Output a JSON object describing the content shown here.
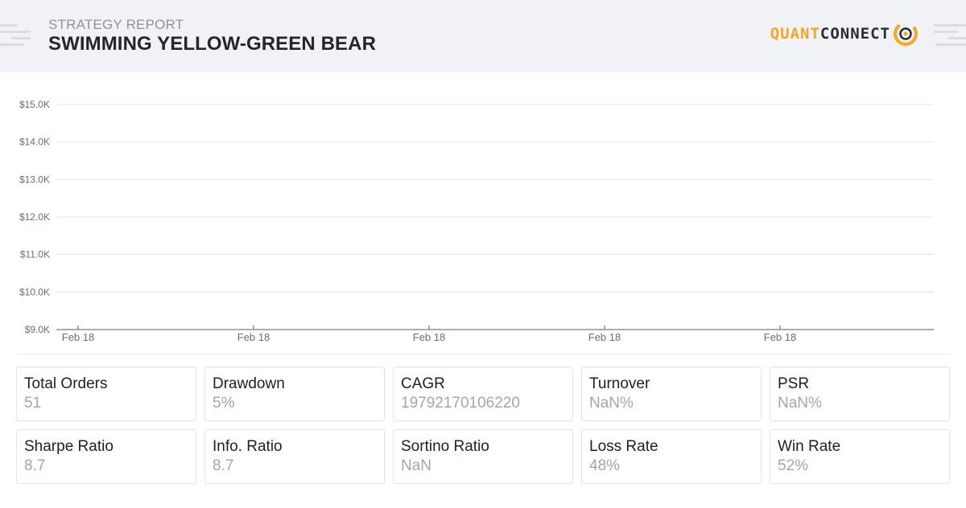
{
  "header": {
    "eyebrow": "STRATEGY REPORT",
    "title": "SWIMMING YELLOW-GREEN BEAR",
    "logo": {
      "part1": "QUANT",
      "part2": "CONNECT",
      "brand_color": "#f5a623",
      "dark_color": "#2b2d33"
    }
  },
  "chart_data": {
    "type": "line",
    "y_ticks": [
      "$15.0K",
      "$14.0K",
      "$13.0K",
      "$12.0K",
      "$11.0K",
      "$10.0K",
      "$9.0K"
    ],
    "ylim": [
      9000,
      15000
    ],
    "x_ticks": [
      "Feb 18",
      "Feb 18",
      "Feb 18",
      "Feb 18",
      "Feb 18"
    ],
    "grid": true,
    "series": [],
    "colors": {
      "grid": "#e6e7ea",
      "axis": "#5a5d63",
      "tick_text": "#6b6e75"
    }
  },
  "stats": [
    {
      "label": "Total Orders",
      "value": "51"
    },
    {
      "label": "Drawdown",
      "value": "5%"
    },
    {
      "label": "CAGR",
      "value": "19792170106220"
    },
    {
      "label": "Turnover",
      "value": "NaN%"
    },
    {
      "label": "PSR",
      "value": "NaN%"
    },
    {
      "label": "Sharpe Ratio",
      "value": "8.7"
    },
    {
      "label": "Info. Ratio",
      "value": "8.7"
    },
    {
      "label": "Sortino Ratio",
      "value": "NaN"
    },
    {
      "label": "Loss Rate",
      "value": "48%"
    },
    {
      "label": "Win Rate",
      "value": "52%"
    }
  ]
}
